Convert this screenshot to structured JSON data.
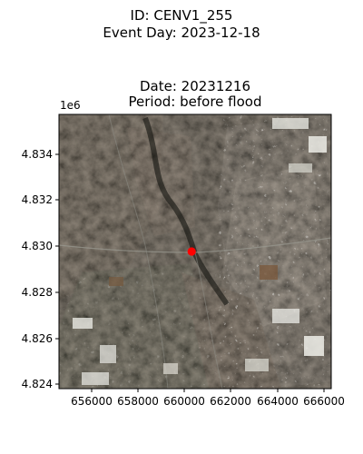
{
  "figure": {
    "suptitle_line1": "ID: CENV1_255",
    "suptitle_line2": "Event Day: 2023-12-18",
    "title_line1": "Date: 20231216",
    "title_line2": "Period: before flood"
  },
  "axes": {
    "y_offset_label": "1e6",
    "x_ticks": [
      "656000",
      "658000",
      "660000",
      "662000",
      "664000",
      "666000"
    ],
    "y_ticks": [
      "4.834",
      "4.832",
      "4.830",
      "4.828",
      "4.826",
      "4.824"
    ],
    "xlim": [
      654600,
      666300
    ],
    "ylim": [
      4823800,
      4835700
    ]
  },
  "image": {
    "description": "satellite true-color image",
    "marker": {
      "x": 660300,
      "y": 4829750,
      "color": "#ff0000"
    }
  }
}
